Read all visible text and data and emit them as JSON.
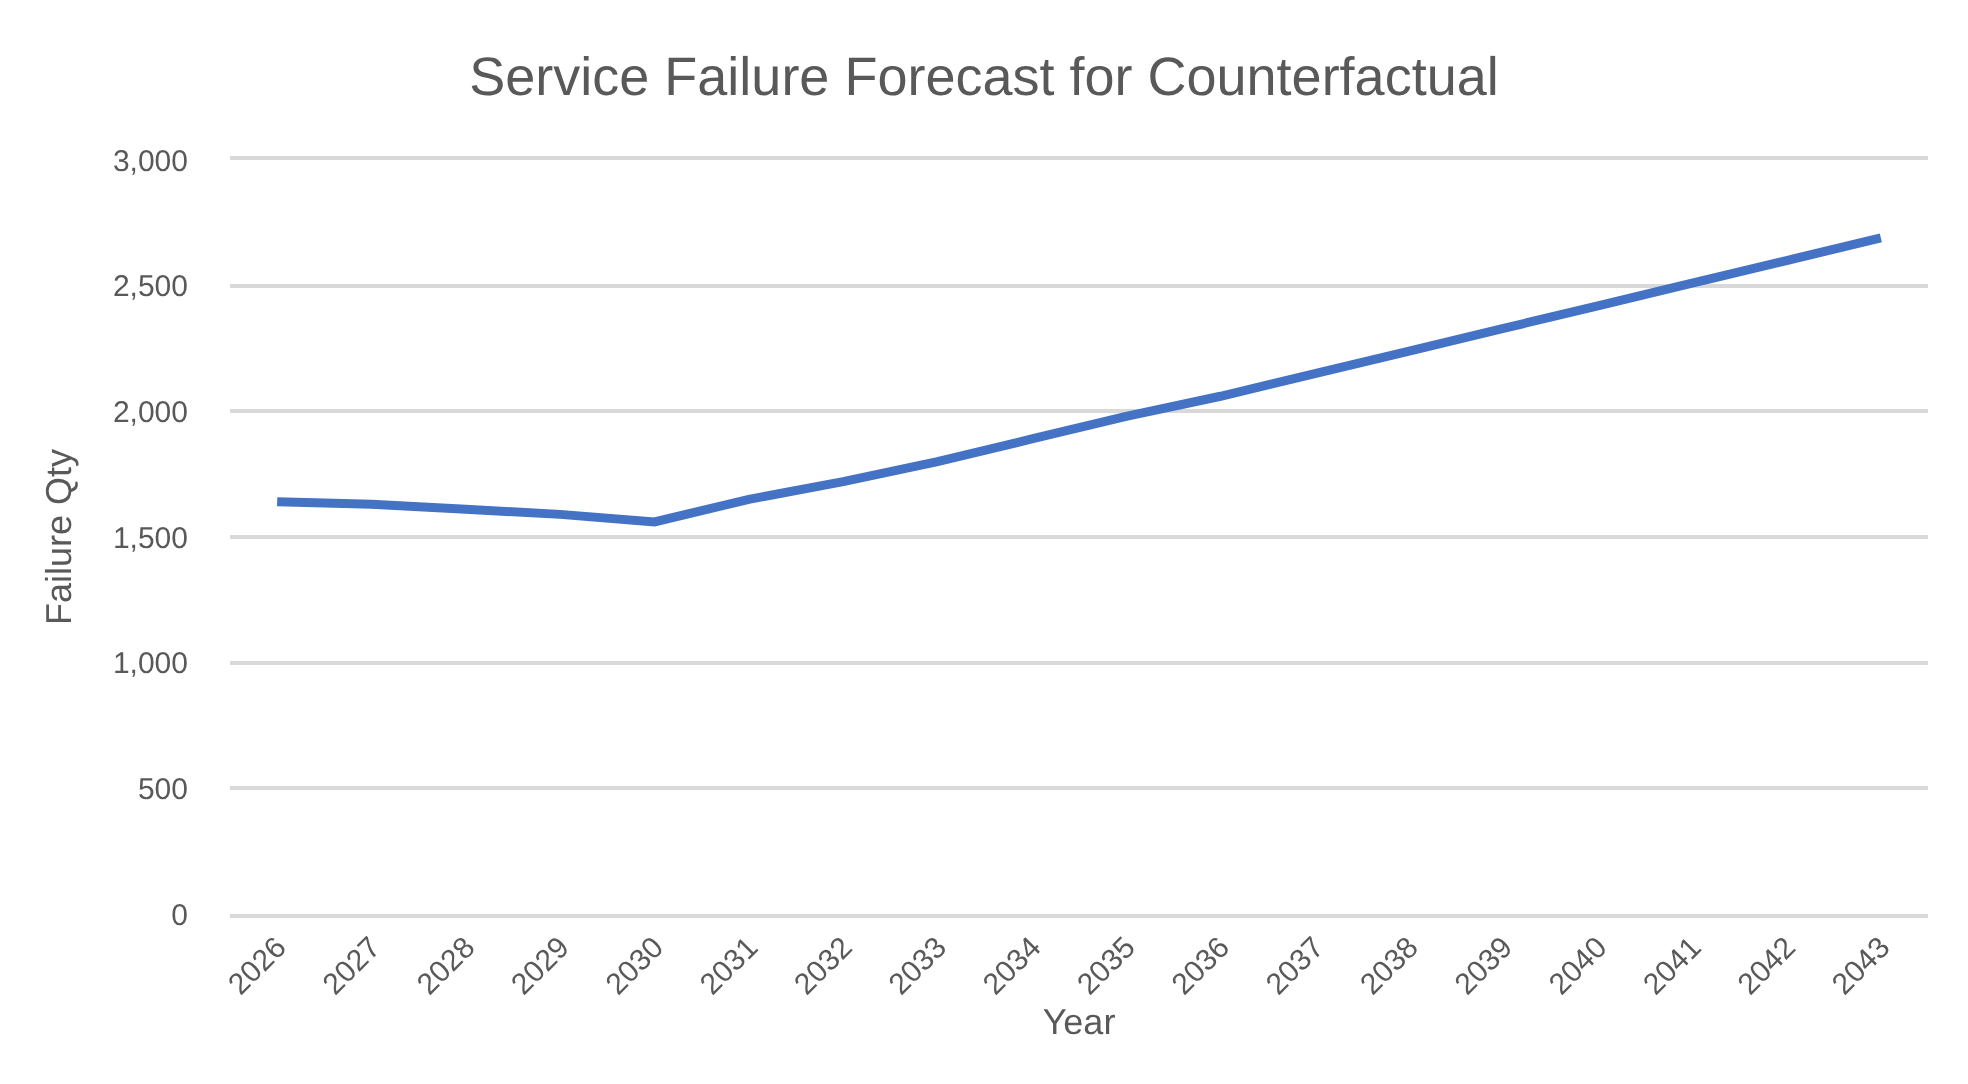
{
  "chart_data": {
    "type": "line",
    "title": "Service Failure Forecast for Counterfactual",
    "xlabel": "Year",
    "ylabel": "Failure Qty",
    "categories": [
      "2026",
      "2027",
      "2028",
      "2029",
      "2030",
      "2031",
      "2032",
      "2033",
      "2034",
      "2035",
      "2036",
      "2037",
      "2038",
      "2039",
      "2040",
      "2041",
      "2042",
      "2043"
    ],
    "series": [
      {
        "color": "#4472c4",
        "values": [
          1640,
          1630,
          1610,
          1590,
          1560,
          1650,
          1720,
          1800,
          1890,
          1980,
          2060,
          2150,
          2240,
          2330,
          2420,
          2510,
          2600,
          2690
        ]
      }
    ],
    "ylim": [
      0,
      3000
    ],
    "yticks": [
      {
        "value": 0,
        "label": "0"
      },
      {
        "value": 500,
        "label": "500"
      },
      {
        "value": 1000,
        "label": "1,000"
      },
      {
        "value": 1500,
        "label": "1,500"
      },
      {
        "value": 2000,
        "label": "2,000"
      },
      {
        "value": 2500,
        "label": "2,500"
      },
      {
        "value": 3000,
        "label": "3,000"
      }
    ],
    "grid": "y",
    "marker": "none",
    "line_style": "solid"
  }
}
